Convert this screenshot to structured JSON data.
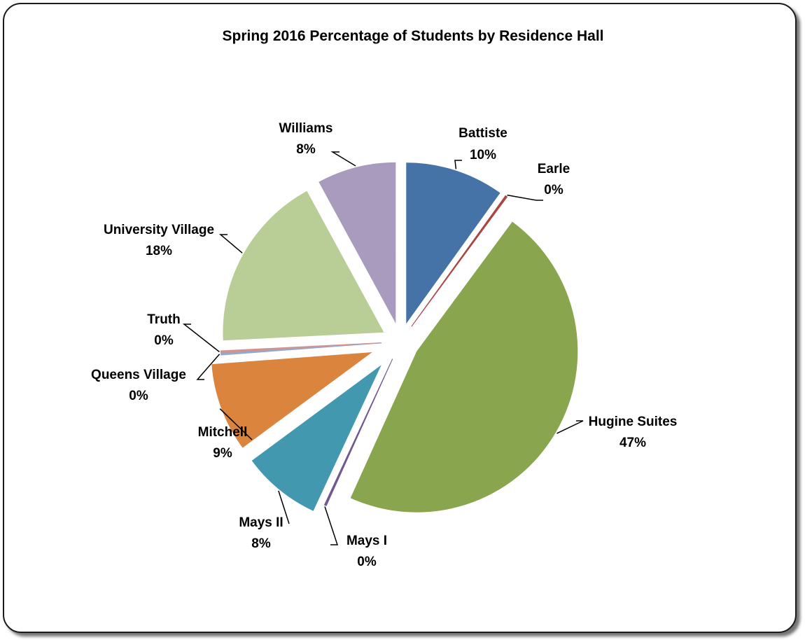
{
  "chart_data": {
    "type": "pie",
    "title": "Spring 2016 Percentage of Students by Residence Hall",
    "slices": [
      {
        "name": "Battiste",
        "label": "10%",
        "value": 10,
        "color": "#4572A7"
      },
      {
        "name": "Earle",
        "label": "0%",
        "value": 0.2,
        "color": "#AA4643"
      },
      {
        "name": "Hugine Suites",
        "label": "47%",
        "value": 47,
        "color": "#89A54E"
      },
      {
        "name": "Mays I",
        "label": "0%",
        "value": 0.2,
        "color": "#71588F"
      },
      {
        "name": "Mays II",
        "label": "8%",
        "value": 8,
        "color": "#4198AF"
      },
      {
        "name": "Mitchell",
        "label": "9%",
        "value": 9,
        "color": "#DB843D"
      },
      {
        "name": "Queens Village",
        "label": "0%",
        "value": 0.2,
        "color": "#93A9CF"
      },
      {
        "name": "Truth",
        "label": "0%",
        "value": 0.2,
        "color": "#D19392"
      },
      {
        "name": "University Village",
        "label": "18%",
        "value": 18,
        "color": "#B9CD96"
      },
      {
        "name": "Williams",
        "label": "8%",
        "value": 8,
        "color": "#A99BBD"
      }
    ],
    "exploded": true,
    "legend": "none",
    "data_labels": "outside with leader lines"
  }
}
